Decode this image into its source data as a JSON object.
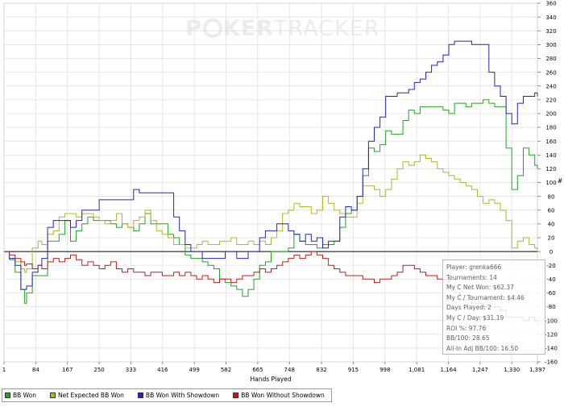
{
  "watermark": {
    "part1": "P",
    "part2": "KER",
    "part3": "TRACKER"
  },
  "tooltip": {
    "lines": [
      "Player: grenka666",
      "Tournaments: 14",
      "My C Net Won: $62.37",
      "My C / Tournament: $4.46",
      "Days Played: 2",
      "My C / Day: $31.19",
      "ROI %: 97.76",
      "BB/100: 28.65",
      "All-In Adj BB/100: 16.50"
    ]
  },
  "colors": {
    "grid": "#dcdcdc",
    "axis": "#000000",
    "bb_won": "#22a322",
    "net_expected": "#b4b428",
    "showdown": "#2424bc",
    "non_showdown": "#b42020"
  },
  "chart_data": {
    "type": "line",
    "title": "",
    "xlabel": "Hands Played",
    "ylabel": "#",
    "xlim": [
      1,
      1397
    ],
    "ylim": [
      -160,
      360
    ],
    "x_ticks": [
      1,
      84,
      167,
      250,
      333,
      416,
      499,
      582,
      665,
      748,
      832,
      915,
      998,
      1081,
      1164,
      1247,
      1330,
      1397
    ],
    "x_tick_labels": [
      "1",
      "84",
      "167",
      "250",
      "333",
      "416",
      "499",
      "582",
      "665",
      "748",
      "832",
      "915",
      "998",
      "1,081",
      "1,164",
      "1,247",
      "1,330",
      "1,397"
    ],
    "y_ticks": [
      -160,
      -140,
      -120,
      -100,
      -80,
      -60,
      -40,
      -20,
      0,
      20,
      40,
      60,
      80,
      100,
      120,
      140,
      160,
      180,
      200,
      220,
      240,
      260,
      280,
      300,
      320,
      340,
      360
    ],
    "series": [
      {
        "name": "BB Won",
        "color": "#22a322",
        "x": [
          1,
          15,
          30,
          45,
          55,
          60,
          75,
          90,
          100,
          115,
          130,
          145,
          160,
          175,
          190,
          205,
          220,
          235,
          250,
          265,
          280,
          295,
          310,
          325,
          340,
          355,
          370,
          385,
          400,
          415,
          430,
          445,
          460,
          475,
          490,
          505,
          520,
          535,
          550,
          565,
          580,
          595,
          610,
          625,
          640,
          655,
          670,
          685,
          700,
          715,
          730,
          745,
          760,
          775,
          790,
          805,
          820,
          835,
          850,
          865,
          880,
          895,
          910,
          925,
          940,
          955,
          970,
          985,
          1000,
          1015,
          1030,
          1045,
          1060,
          1075,
          1090,
          1105,
          1120,
          1135,
          1150,
          1165,
          1180,
          1195,
          1210,
          1225,
          1240,
          1255,
          1270,
          1285,
          1300,
          1315,
          1330,
          1345,
          1360,
          1375,
          1390,
          1397
        ],
        "values": [
          0,
          -12,
          -30,
          -55,
          -75,
          -60,
          -35,
          -35,
          -35,
          15,
          15,
          25,
          45,
          15,
          30,
          40,
          50,
          45,
          45,
          45,
          40,
          35,
          40,
          35,
          30,
          40,
          55,
          40,
          40,
          40,
          25,
          20,
          10,
          -5,
          -10,
          -10,
          -15,
          -20,
          -25,
          -40,
          -45,
          -50,
          -55,
          -65,
          -55,
          -40,
          -20,
          -15,
          0,
          0,
          0,
          5,
          25,
          15,
          10,
          10,
          5,
          10,
          10,
          15,
          35,
          55,
          60,
          80,
          110,
          150,
          145,
          155,
          175,
          170,
          170,
          190,
          205,
          200,
          210,
          210,
          210,
          210,
          205,
          200,
          215,
          215,
          210,
          215,
          215,
          220,
          215,
          210,
          210,
          150,
          90,
          110,
          150,
          140,
          125,
          120
        ]
      },
      {
        "name": "Net Expected BB Won",
        "color": "#b4b428",
        "x": [
          1,
          15,
          30,
          45,
          55,
          60,
          75,
          90,
          100,
          115,
          130,
          145,
          160,
          175,
          190,
          205,
          220,
          235,
          250,
          265,
          280,
          295,
          310,
          325,
          340,
          355,
          370,
          385,
          400,
          415,
          430,
          445,
          460,
          475,
          490,
          505,
          520,
          535,
          550,
          565,
          580,
          595,
          610,
          625,
          640,
          655,
          670,
          685,
          700,
          715,
          730,
          745,
          760,
          775,
          790,
          805,
          820,
          835,
          850,
          865,
          880,
          895,
          910,
          925,
          940,
          955,
          970,
          985,
          1000,
          1015,
          1030,
          1045,
          1060,
          1075,
          1090,
          1105,
          1120,
          1135,
          1150,
          1165,
          1180,
          1195,
          1210,
          1225,
          1240,
          1255,
          1270,
          1285,
          1300,
          1315,
          1330,
          1345,
          1360,
          1375,
          1390,
          1397
        ],
        "values": [
          0,
          -10,
          -15,
          -25,
          -30,
          -25,
          5,
          15,
          10,
          25,
          30,
          50,
          55,
          55,
          50,
          55,
          55,
          50,
          45,
          40,
          45,
          55,
          40,
          35,
          45,
          50,
          60,
          45,
          30,
          25,
          20,
          10,
          10,
          5,
          5,
          10,
          15,
          10,
          10,
          15,
          15,
          20,
          10,
          10,
          15,
          10,
          15,
          10,
          20,
          30,
          55,
          60,
          70,
          65,
          65,
          55,
          60,
          80,
          70,
          60,
          55,
          50,
          50,
          70,
          95,
          95,
          90,
          80,
          90,
          105,
          120,
          130,
          125,
          130,
          140,
          135,
          130,
          120,
          115,
          110,
          105,
          100,
          95,
          90,
          80,
          70,
          75,
          70,
          60,
          45,
          5,
          15,
          20,
          10,
          5,
          0
        ]
      },
      {
        "name": "BB Won With Showdown",
        "color": "#2424bc",
        "x": [
          1,
          15,
          30,
          45,
          55,
          60,
          75,
          90,
          100,
          115,
          130,
          145,
          160,
          175,
          190,
          205,
          220,
          235,
          250,
          265,
          280,
          295,
          310,
          325,
          340,
          355,
          370,
          385,
          400,
          415,
          430,
          445,
          460,
          475,
          490,
          505,
          520,
          535,
          550,
          565,
          580,
          595,
          610,
          625,
          640,
          655,
          670,
          685,
          700,
          715,
          730,
          745,
          760,
          775,
          790,
          805,
          820,
          835,
          850,
          865,
          880,
          895,
          910,
          925,
          940,
          955,
          970,
          985,
          1000,
          1015,
          1030,
          1045,
          1060,
          1075,
          1090,
          1105,
          1120,
          1135,
          1150,
          1165,
          1180,
          1195,
          1210,
          1225,
          1240,
          1255,
          1270,
          1285,
          1300,
          1315,
          1330,
          1345,
          1360,
          1375,
          1390,
          1397
        ],
        "values": [
          0,
          -10,
          -20,
          -55,
          -55,
          -50,
          -30,
          -20,
          -10,
          35,
          45,
          45,
          45,
          35,
          45,
          60,
          60,
          60,
          75,
          75,
          75,
          75,
          75,
          75,
          90,
          85,
          85,
          85,
          85,
          85,
          85,
          50,
          30,
          10,
          0,
          0,
          -10,
          -10,
          -10,
          -10,
          0,
          0,
          -10,
          -10,
          0,
          0,
          20,
          30,
          30,
          40,
          40,
          30,
          25,
          15,
          25,
          15,
          20,
          5,
          15,
          15,
          50,
          65,
          60,
          80,
          120,
          160,
          180,
          195,
          225,
          225,
          230,
          230,
          235,
          245,
          250,
          260,
          270,
          275,
          285,
          300,
          305,
          305,
          305,
          300,
          300,
          300,
          260,
          240,
          225,
          200,
          185,
          215,
          225,
          225,
          230,
          225
        ]
      },
      {
        "name": "BB Won Without Showdown",
        "color": "#b42020",
        "x": [
          1,
          15,
          30,
          45,
          55,
          60,
          75,
          90,
          100,
          115,
          130,
          145,
          160,
          175,
          190,
          205,
          220,
          235,
          250,
          265,
          280,
          295,
          310,
          325,
          340,
          355,
          370,
          385,
          400,
          415,
          430,
          445,
          460,
          475,
          490,
          505,
          520,
          535,
          550,
          565,
          580,
          595,
          610,
          625,
          640,
          655,
          670,
          685,
          700,
          715,
          730,
          745,
          760,
          775,
          790,
          805,
          820,
          835,
          850,
          865,
          880,
          895,
          910,
          925,
          940,
          955,
          970,
          985,
          1000,
          1015,
          1030,
          1045,
          1060,
          1075,
          1090,
          1105,
          1120,
          1135,
          1150,
          1165,
          1180,
          1195,
          1210,
          1225,
          1240,
          1255,
          1270,
          1285,
          1300,
          1315,
          1330,
          1345,
          1360,
          1375,
          1390,
          1397
        ],
        "values": [
          0,
          -5,
          -10,
          -15,
          -20,
          -18,
          -25,
          -20,
          -25,
          -15,
          -10,
          -15,
          -10,
          -5,
          -12,
          -20,
          -15,
          -20,
          -25,
          -20,
          -15,
          -25,
          -30,
          -25,
          -30,
          -30,
          -35,
          -30,
          -30,
          -35,
          -35,
          -30,
          -35,
          -30,
          -35,
          -40,
          -35,
          -40,
          -45,
          -40,
          -40,
          -45,
          -40,
          -35,
          -35,
          -30,
          -25,
          -30,
          -25,
          -20,
          -15,
          -10,
          -5,
          -10,
          -5,
          0,
          -5,
          -10,
          -20,
          -25,
          -30,
          -35,
          -35,
          -35,
          -40,
          -40,
          -45,
          -40,
          -40,
          -35,
          -30,
          -20,
          -20,
          -25,
          -30,
          -35,
          -35,
          -40,
          -40,
          -50,
          -60,
          -70,
          -70,
          -75,
          -75,
          -80,
          -80,
          -80,
          -85,
          -95,
          -95,
          -95,
          -100,
          -95,
          -100,
          -105
        ]
      }
    ]
  },
  "legend": {
    "items": [
      "BB Won",
      "Net Expected BB Won",
      "BB Won With Showdown",
      "BB Won Without Showdown"
    ]
  }
}
